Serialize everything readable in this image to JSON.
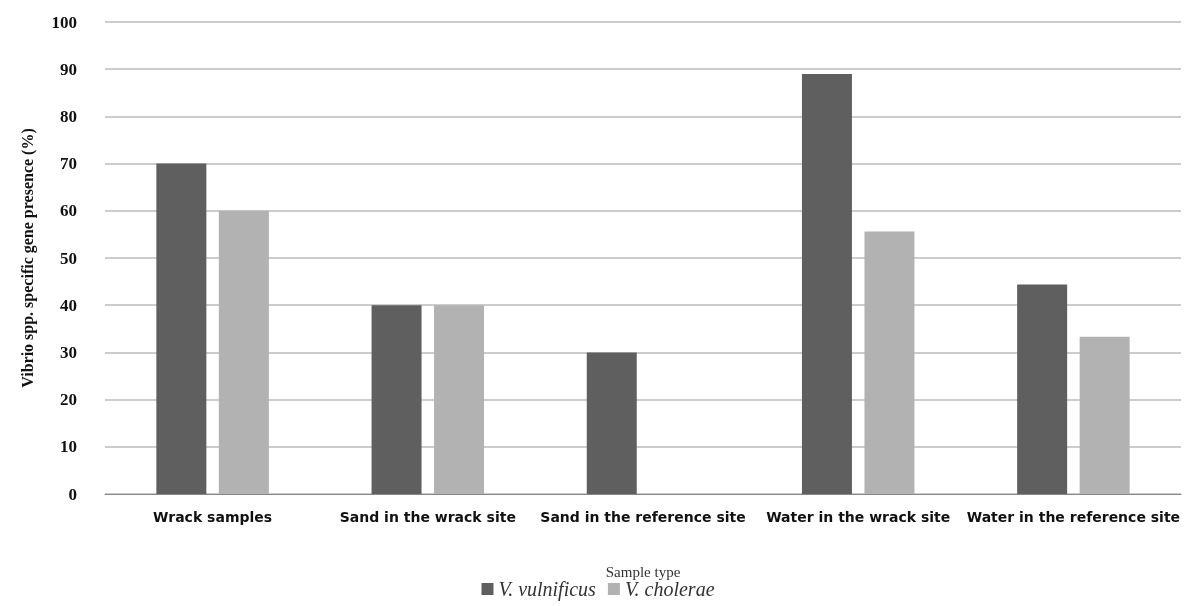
{
  "chart_data": {
    "type": "bar",
    "xlabel": "Sample type",
    "ylabel": "Vibrio spp. specific gene presence (%)",
    "categories": [
      "Wrack samples",
      "Sand in the wrack site",
      "Sand in the reference site",
      "Water in the wrack site",
      "Water in the reference site"
    ],
    "series": [
      {
        "name": "V. vulnificus",
        "color": "#5f5f5f",
        "values": [
          70,
          40,
          30,
          89,
          44.4
        ]
      },
      {
        "name": "V. cholerae",
        "color": "#b2b2b2",
        "values": [
          60,
          40,
          0,
          55.6,
          33.3
        ]
      }
    ],
    "ylim": [
      0,
      100
    ],
    "yticks": [
      0,
      10,
      20,
      30,
      40,
      50,
      60,
      70,
      80,
      90,
      100
    ],
    "grid": "y",
    "legend": "bottom"
  }
}
